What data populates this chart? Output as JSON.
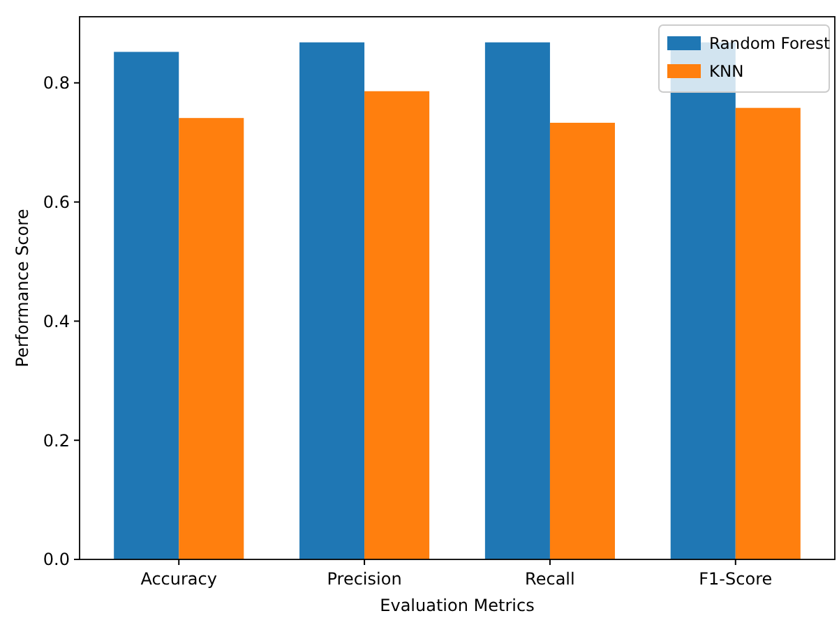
{
  "chart_data": {
    "type": "bar",
    "xlabel": "Evaluation Metrics",
    "ylabel": "Performance Score",
    "categories": [
      "Accuracy",
      "Precision",
      "Recall",
      "F1-Score"
    ],
    "series": [
      {
        "name": "Random Forest",
        "color": "#1f77b4",
        "values": [
          0.852,
          0.868,
          0.868,
          0.868
        ]
      },
      {
        "name": "KNN",
        "color": "#ff7f0e",
        "values": [
          0.741,
          0.786,
          0.733,
          0.758
        ]
      }
    ],
    "ylim": [
      0,
      0.911
    ],
    "yticks": [
      {
        "value": 0,
        "label": "0.0"
      },
      0.2,
      0.4,
      0.6,
      0.8
    ],
    "grid": false,
    "legend": "top right"
  }
}
